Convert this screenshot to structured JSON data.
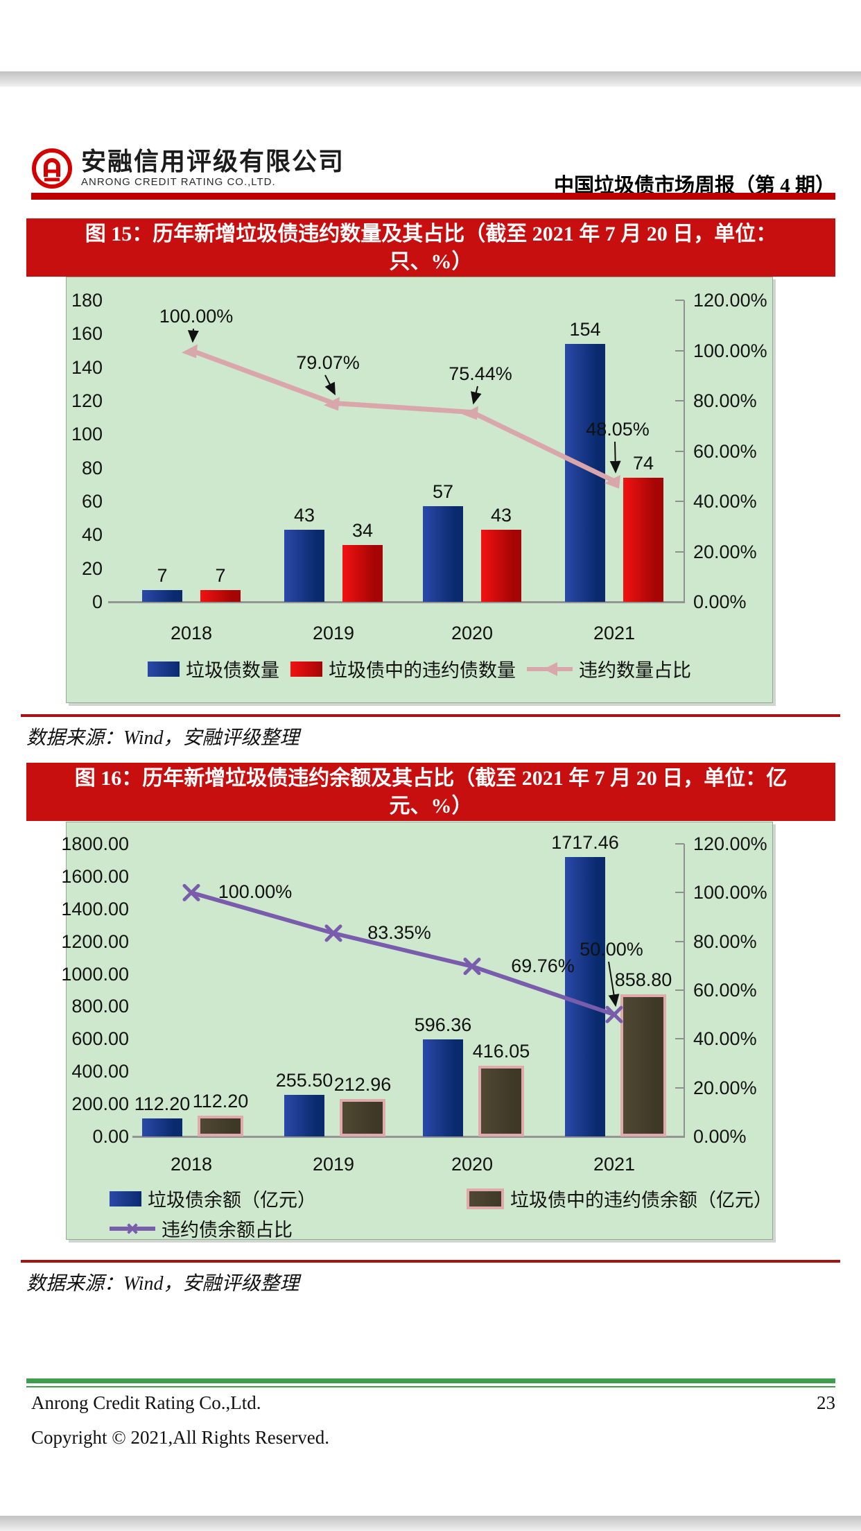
{
  "header": {
    "logo_cn": "安融信用评级有限公司",
    "logo_en": "ANRONG CREDIT RATING CO.,LTD.",
    "report_title": "中国垃圾债市场周报（第 4 期）"
  },
  "figures": [
    {
      "banner_line1": "图 15：历年新增垃圾债违约数量及其占比（截至 2021 年 7 月 20 日，单位：",
      "banner_line2": "只、%）",
      "source": "数据来源：Wind，安融评级整理"
    },
    {
      "banner_line1": "图 16：历年新增垃圾债违约余额及其占比（截至 2021 年 7 月 20 日，单位：亿",
      "banner_line2": "元、%）",
      "source": "数据来源：Wind，安融评级整理"
    }
  ],
  "footer": {
    "company": "Anrong Credit Rating Co.,Ltd.",
    "page_number": "23",
    "copyright": "Copyright © 2021,All Rights Reserved."
  },
  "colors": {
    "banner_red": "#c70f0f",
    "header_rule_red": "#bf0000",
    "divider_red": "#a81212",
    "chart_bg": "#cde8cc",
    "footer_green": "#3f9e4d"
  },
  "chart_data": [
    {
      "type": "bar",
      "title": "图 15：历年新增垃圾债违约数量及其占比（截至 2021 年 7 月 20 日，单位：只、%）",
      "categories": [
        "2018",
        "2019",
        "2020",
        "2021"
      ],
      "series": [
        {
          "name": "垃圾债数量",
          "type": "bar",
          "axis": "left",
          "colors": [
            "#2a49a8",
            "#0a2a6e"
          ],
          "values": [
            7,
            43,
            57,
            154
          ],
          "labels": [
            "7",
            "43",
            "57",
            "154"
          ]
        },
        {
          "name": "垃圾债中的违约债数量",
          "type": "bar",
          "axis": "left",
          "colors": [
            "#f21212",
            "#a50505"
          ],
          "values": [
            7,
            34,
            43,
            74
          ],
          "labels": [
            "7",
            "34",
            "43",
            "74"
          ]
        },
        {
          "name": "违约数量占比",
          "type": "line",
          "axis": "right",
          "color": "#d9a6ac",
          "marker": "triangle",
          "values": [
            100,
            79.07,
            75.44,
            48.05
          ],
          "labels": [
            "100.00%",
            "79.07%",
            "75.44%",
            "48.05%"
          ]
        }
      ],
      "left_axis": {
        "min": 0,
        "max": 180,
        "step": 20,
        "ticks": [
          "0",
          "20",
          "40",
          "60",
          "80",
          "100",
          "120",
          "140",
          "160",
          "180"
        ]
      },
      "right_axis": {
        "min": 0,
        "max": 120,
        "step": 20,
        "ticks": [
          "0.00%",
          "20.00%",
          "40.00%",
          "60.00%",
          "80.00%",
          "100.00%",
          "120.00%"
        ]
      },
      "grid": false,
      "legend_position": "bottom-center"
    },
    {
      "type": "bar",
      "title": "图 16：历年新增垃圾债违约余额及其占比（截至 2021 年 7 月 20 日，单位：亿元、%）",
      "categories": [
        "2018",
        "2019",
        "2020",
        "2021"
      ],
      "series": [
        {
          "name": "垃圾债余额（亿元）",
          "type": "bar",
          "axis": "left",
          "colors": [
            "#2a49a8",
            "#0a2a6e"
          ],
          "values": [
            112.2,
            255.5,
            596.36,
            1717.46
          ],
          "labels": [
            "112.20",
            "255.50",
            "596.36",
            "1717.46"
          ]
        },
        {
          "name": "垃圾债中的违约债余额（亿元）",
          "type": "bar",
          "axis": "left",
          "colors": [
            "#4f4933",
            "#3e3927"
          ],
          "border": "#e2a9ad",
          "values": [
            112.2,
            212.96,
            416.05,
            858.8
          ],
          "labels": [
            "112.20",
            "212.96",
            "416.05",
            "858.80"
          ]
        },
        {
          "name": "违约债余额占比",
          "type": "line",
          "axis": "right",
          "color": "#7a5cad",
          "marker": "x",
          "values": [
            100,
            83.35,
            69.76,
            50
          ],
          "labels": [
            "100.00%",
            "83.35%",
            "69.76%",
            "50.00%"
          ]
        }
      ],
      "left_axis": {
        "min": 0,
        "max": 1800,
        "step": 200,
        "ticks": [
          "0.00",
          "200.00",
          "400.00",
          "600.00",
          "800.00",
          "1000.00",
          "1200.00",
          "1400.00",
          "1600.00",
          "1800.00"
        ]
      },
      "right_axis": {
        "min": 0,
        "max": 120,
        "step": 20,
        "ticks": [
          "0.00%",
          "20.00%",
          "40.00%",
          "60.00%",
          "80.00%",
          "100.00%",
          "120.00%"
        ]
      },
      "grid": false,
      "legend_position": "bottom-left-two-rows"
    }
  ]
}
